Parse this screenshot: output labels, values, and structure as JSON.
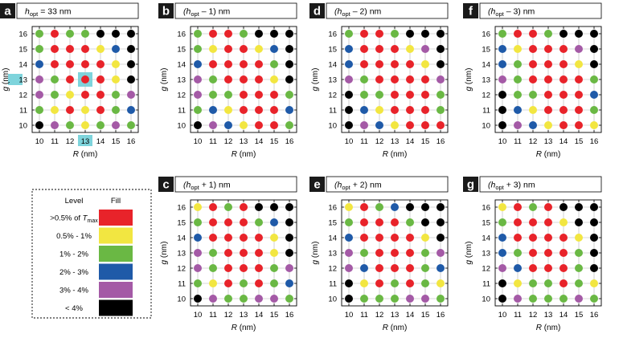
{
  "figure": {
    "axis_unit": "(nm)",
    "xlabel_var": "R",
    "ylabel_var": "g",
    "highlight_value": "13"
  },
  "colors": {
    "red": "#e8232a",
    "yellow": "#f2e641",
    "green": "#6ab844",
    "blue": "#1f5aa8",
    "purple": "#a45aa6",
    "black": "#000000",
    "highlight": "#7ed4dc"
  },
  "legend": {
    "header_level": "Level",
    "header_fill": "Fill",
    "rows": [
      {
        "level": ">0.5% of T",
        "level_sub": "max",
        "color": "red"
      },
      {
        "level": "0.5% - 1%",
        "color": "yellow"
      },
      {
        "level": "1% - 2%",
        "color": "green"
      },
      {
        "level": "2% - 3%",
        "color": "blue"
      },
      {
        "level": "3% - 4%",
        "color": "purple"
      },
      {
        "level": "< 4%",
        "color": "black"
      }
    ]
  },
  "chart_data": [
    {
      "type": "scatter",
      "panel": "a",
      "title_prefix": "h",
      "title_sub": "opt",
      "title_suffix": " = ",
      "title_box": "33",
      "title_unit": " nm",
      "x": [
        10,
        11,
        12,
        13,
        14,
        15,
        16
      ],
      "y": [
        10,
        11,
        12,
        13,
        14,
        15,
        16
      ],
      "xlabel": "R (nm)",
      "ylabel": "g (nm)",
      "highlight": {
        "x": 13,
        "y": 13
      },
      "grid": [
        [
          "black",
          "purple",
          "green",
          "yellow",
          "green",
          "purple",
          "green"
        ],
        [
          "green",
          "yellow",
          "red",
          "yellow",
          "red",
          "green",
          "blue"
        ],
        [
          "purple",
          "green",
          "yellow",
          "red",
          "red",
          "green",
          "purple"
        ],
        [
          "purple",
          "green",
          "red",
          "red",
          "red",
          "yellow",
          "black"
        ],
        [
          "blue",
          "red",
          "red",
          "red",
          "red",
          "yellow",
          "black"
        ],
        [
          "green",
          "red",
          "red",
          "red",
          "yellow",
          "blue",
          "black"
        ],
        [
          "green",
          "red",
          "green",
          "green",
          "black",
          "black",
          "black"
        ]
      ]
    },
    {
      "type": "scatter",
      "panel": "b",
      "title_prefix": "(h",
      "title_sub": "opt",
      "title_suffix": " – 1) nm",
      "x": [
        10,
        11,
        12,
        13,
        14,
        15,
        16
      ],
      "y": [
        10,
        11,
        12,
        13,
        14,
        15,
        16
      ],
      "xlabel": "R (nm)",
      "ylabel": "g (nm)",
      "grid": [
        [
          "black",
          "purple",
          "blue",
          "yellow",
          "red",
          "red",
          "green"
        ],
        [
          "green",
          "blue",
          "yellow",
          "red",
          "red",
          "red",
          "blue"
        ],
        [
          "purple",
          "green",
          "green",
          "red",
          "red",
          "red",
          "green"
        ],
        [
          "purple",
          "green",
          "red",
          "red",
          "red",
          "yellow",
          "black"
        ],
        [
          "blue",
          "red",
          "red",
          "red",
          "red",
          "green",
          "black"
        ],
        [
          "green",
          "yellow",
          "red",
          "red",
          "yellow",
          "blue",
          "black"
        ],
        [
          "green",
          "red",
          "red",
          "green",
          "black",
          "black",
          "black"
        ]
      ]
    },
    {
      "type": "scatter",
      "panel": "c",
      "title_prefix": "(h",
      "title_sub": "opt",
      "title_suffix": " + 1) nm",
      "x": [
        10,
        11,
        12,
        13,
        14,
        15,
        16
      ],
      "y": [
        10,
        11,
        12,
        13,
        14,
        15,
        16
      ],
      "xlabel": "R (nm)",
      "ylabel": "g (nm)",
      "grid": [
        [
          "black",
          "purple",
          "green",
          "green",
          "purple",
          "purple",
          "green"
        ],
        [
          "green",
          "yellow",
          "red",
          "green",
          "red",
          "green",
          "blue"
        ],
        [
          "purple",
          "green",
          "red",
          "red",
          "red",
          "green",
          "purple"
        ],
        [
          "purple",
          "green",
          "red",
          "red",
          "red",
          "yellow",
          "black"
        ],
        [
          "blue",
          "red",
          "red",
          "red",
          "red",
          "yellow",
          "black"
        ],
        [
          "green",
          "red",
          "red",
          "red",
          "green",
          "blue",
          "black"
        ],
        [
          "yellow",
          "red",
          "green",
          "red",
          "black",
          "black",
          "black"
        ]
      ]
    },
    {
      "type": "scatter",
      "panel": "d",
      "title_prefix": "(h",
      "title_sub": "opt",
      "title_suffix": " – 2) nm",
      "x": [
        10,
        11,
        12,
        13,
        14,
        15,
        16
      ],
      "y": [
        10,
        11,
        12,
        13,
        14,
        15,
        16
      ],
      "xlabel": "R (nm)",
      "ylabel": "g (nm)",
      "grid": [
        [
          "black",
          "purple",
          "blue",
          "yellow",
          "red",
          "red",
          "red"
        ],
        [
          "black",
          "blue",
          "yellow",
          "red",
          "red",
          "red",
          "green"
        ],
        [
          "black",
          "green",
          "green",
          "red",
          "red",
          "red",
          "green"
        ],
        [
          "purple",
          "green",
          "red",
          "red",
          "red",
          "red",
          "purple"
        ],
        [
          "blue",
          "red",
          "red",
          "red",
          "red",
          "yellow",
          "black"
        ],
        [
          "blue",
          "red",
          "red",
          "red",
          "yellow",
          "purple",
          "black"
        ],
        [
          "green",
          "red",
          "red",
          "green",
          "black",
          "black",
          "black"
        ]
      ]
    },
    {
      "type": "scatter",
      "panel": "e",
      "title_prefix": "(h",
      "title_sub": "opt",
      "title_suffix": " + 2) nm",
      "x": [
        10,
        11,
        12,
        13,
        14,
        15,
        16
      ],
      "y": [
        10,
        11,
        12,
        13,
        14,
        15,
        16
      ],
      "xlabel": "R (nm)",
      "ylabel": "g (nm)",
      "grid": [
        [
          "black",
          "green",
          "green",
          "green",
          "purple",
          "purple",
          "green"
        ],
        [
          "black",
          "yellow",
          "red",
          "green",
          "red",
          "green",
          "yellow"
        ],
        [
          "purple",
          "blue",
          "red",
          "red",
          "red",
          "green",
          "blue"
        ],
        [
          "purple",
          "green",
          "red",
          "red",
          "red",
          "green",
          "purple"
        ],
        [
          "blue",
          "red",
          "red",
          "red",
          "red",
          "yellow",
          "black"
        ],
        [
          "green",
          "red",
          "red",
          "red",
          "green",
          "black",
          "black"
        ],
        [
          "yellow",
          "red",
          "green",
          "blue",
          "black",
          "black",
          "black"
        ]
      ]
    },
    {
      "type": "scatter",
      "panel": "f",
      "title_prefix": "(h",
      "title_sub": "opt",
      "title_suffix": " – 3) nm",
      "x": [
        10,
        11,
        12,
        13,
        14,
        15,
        16
      ],
      "y": [
        10,
        11,
        12,
        13,
        14,
        15,
        16
      ],
      "xlabel": "R (nm)",
      "ylabel": "g (nm)",
      "grid": [
        [
          "black",
          "purple",
          "blue",
          "yellow",
          "red",
          "red",
          "yellow"
        ],
        [
          "black",
          "blue",
          "yellow",
          "red",
          "red",
          "red",
          "green"
        ],
        [
          "black",
          "green",
          "green",
          "red",
          "red",
          "red",
          "blue"
        ],
        [
          "purple",
          "green",
          "red",
          "red",
          "red",
          "red",
          "green"
        ],
        [
          "blue",
          "green",
          "red",
          "red",
          "red",
          "yellow",
          "black"
        ],
        [
          "blue",
          "yellow",
          "red",
          "red",
          "red",
          "purple",
          "black"
        ],
        [
          "green",
          "red",
          "red",
          "green",
          "black",
          "black",
          "black"
        ]
      ]
    },
    {
      "type": "scatter",
      "panel": "g",
      "title_prefix": "(h",
      "title_sub": "opt",
      "title_suffix": " + 3) nm",
      "x": [
        10,
        11,
        12,
        13,
        14,
        15,
        16
      ],
      "y": [
        10,
        11,
        12,
        13,
        14,
        15,
        16
      ],
      "xlabel": "R (nm)",
      "ylabel": "g (nm)",
      "grid": [
        [
          "black",
          "purple",
          "green",
          "green",
          "green",
          "purple",
          "green"
        ],
        [
          "black",
          "yellow",
          "green",
          "green",
          "red",
          "green",
          "yellow"
        ],
        [
          "purple",
          "blue",
          "red",
          "red",
          "red",
          "green",
          "black"
        ],
        [
          "blue",
          "green",
          "red",
          "red",
          "red",
          "green",
          "black"
        ],
        [
          "blue",
          "red",
          "red",
          "red",
          "red",
          "yellow",
          "black"
        ],
        [
          "green",
          "red",
          "red",
          "red",
          "yellow",
          "black",
          "black"
        ],
        [
          "yellow",
          "red",
          "green",
          "red",
          "black",
          "black",
          "black"
        ]
      ]
    }
  ]
}
